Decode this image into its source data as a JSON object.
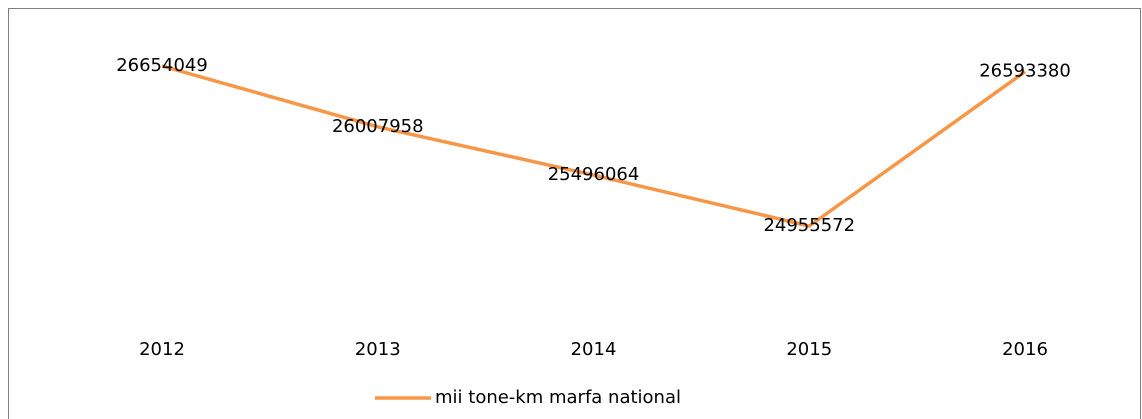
{
  "chart_data": {
    "type": "line",
    "categories": [
      "2012",
      "2013",
      "2014",
      "2015",
      "2016"
    ],
    "series": [
      {
        "name": "mii tone-km marfa national",
        "color": "#f79646",
        "values": [
          26654049,
          26007958,
          25496064,
          24955572,
          26593380
        ]
      }
    ]
  }
}
